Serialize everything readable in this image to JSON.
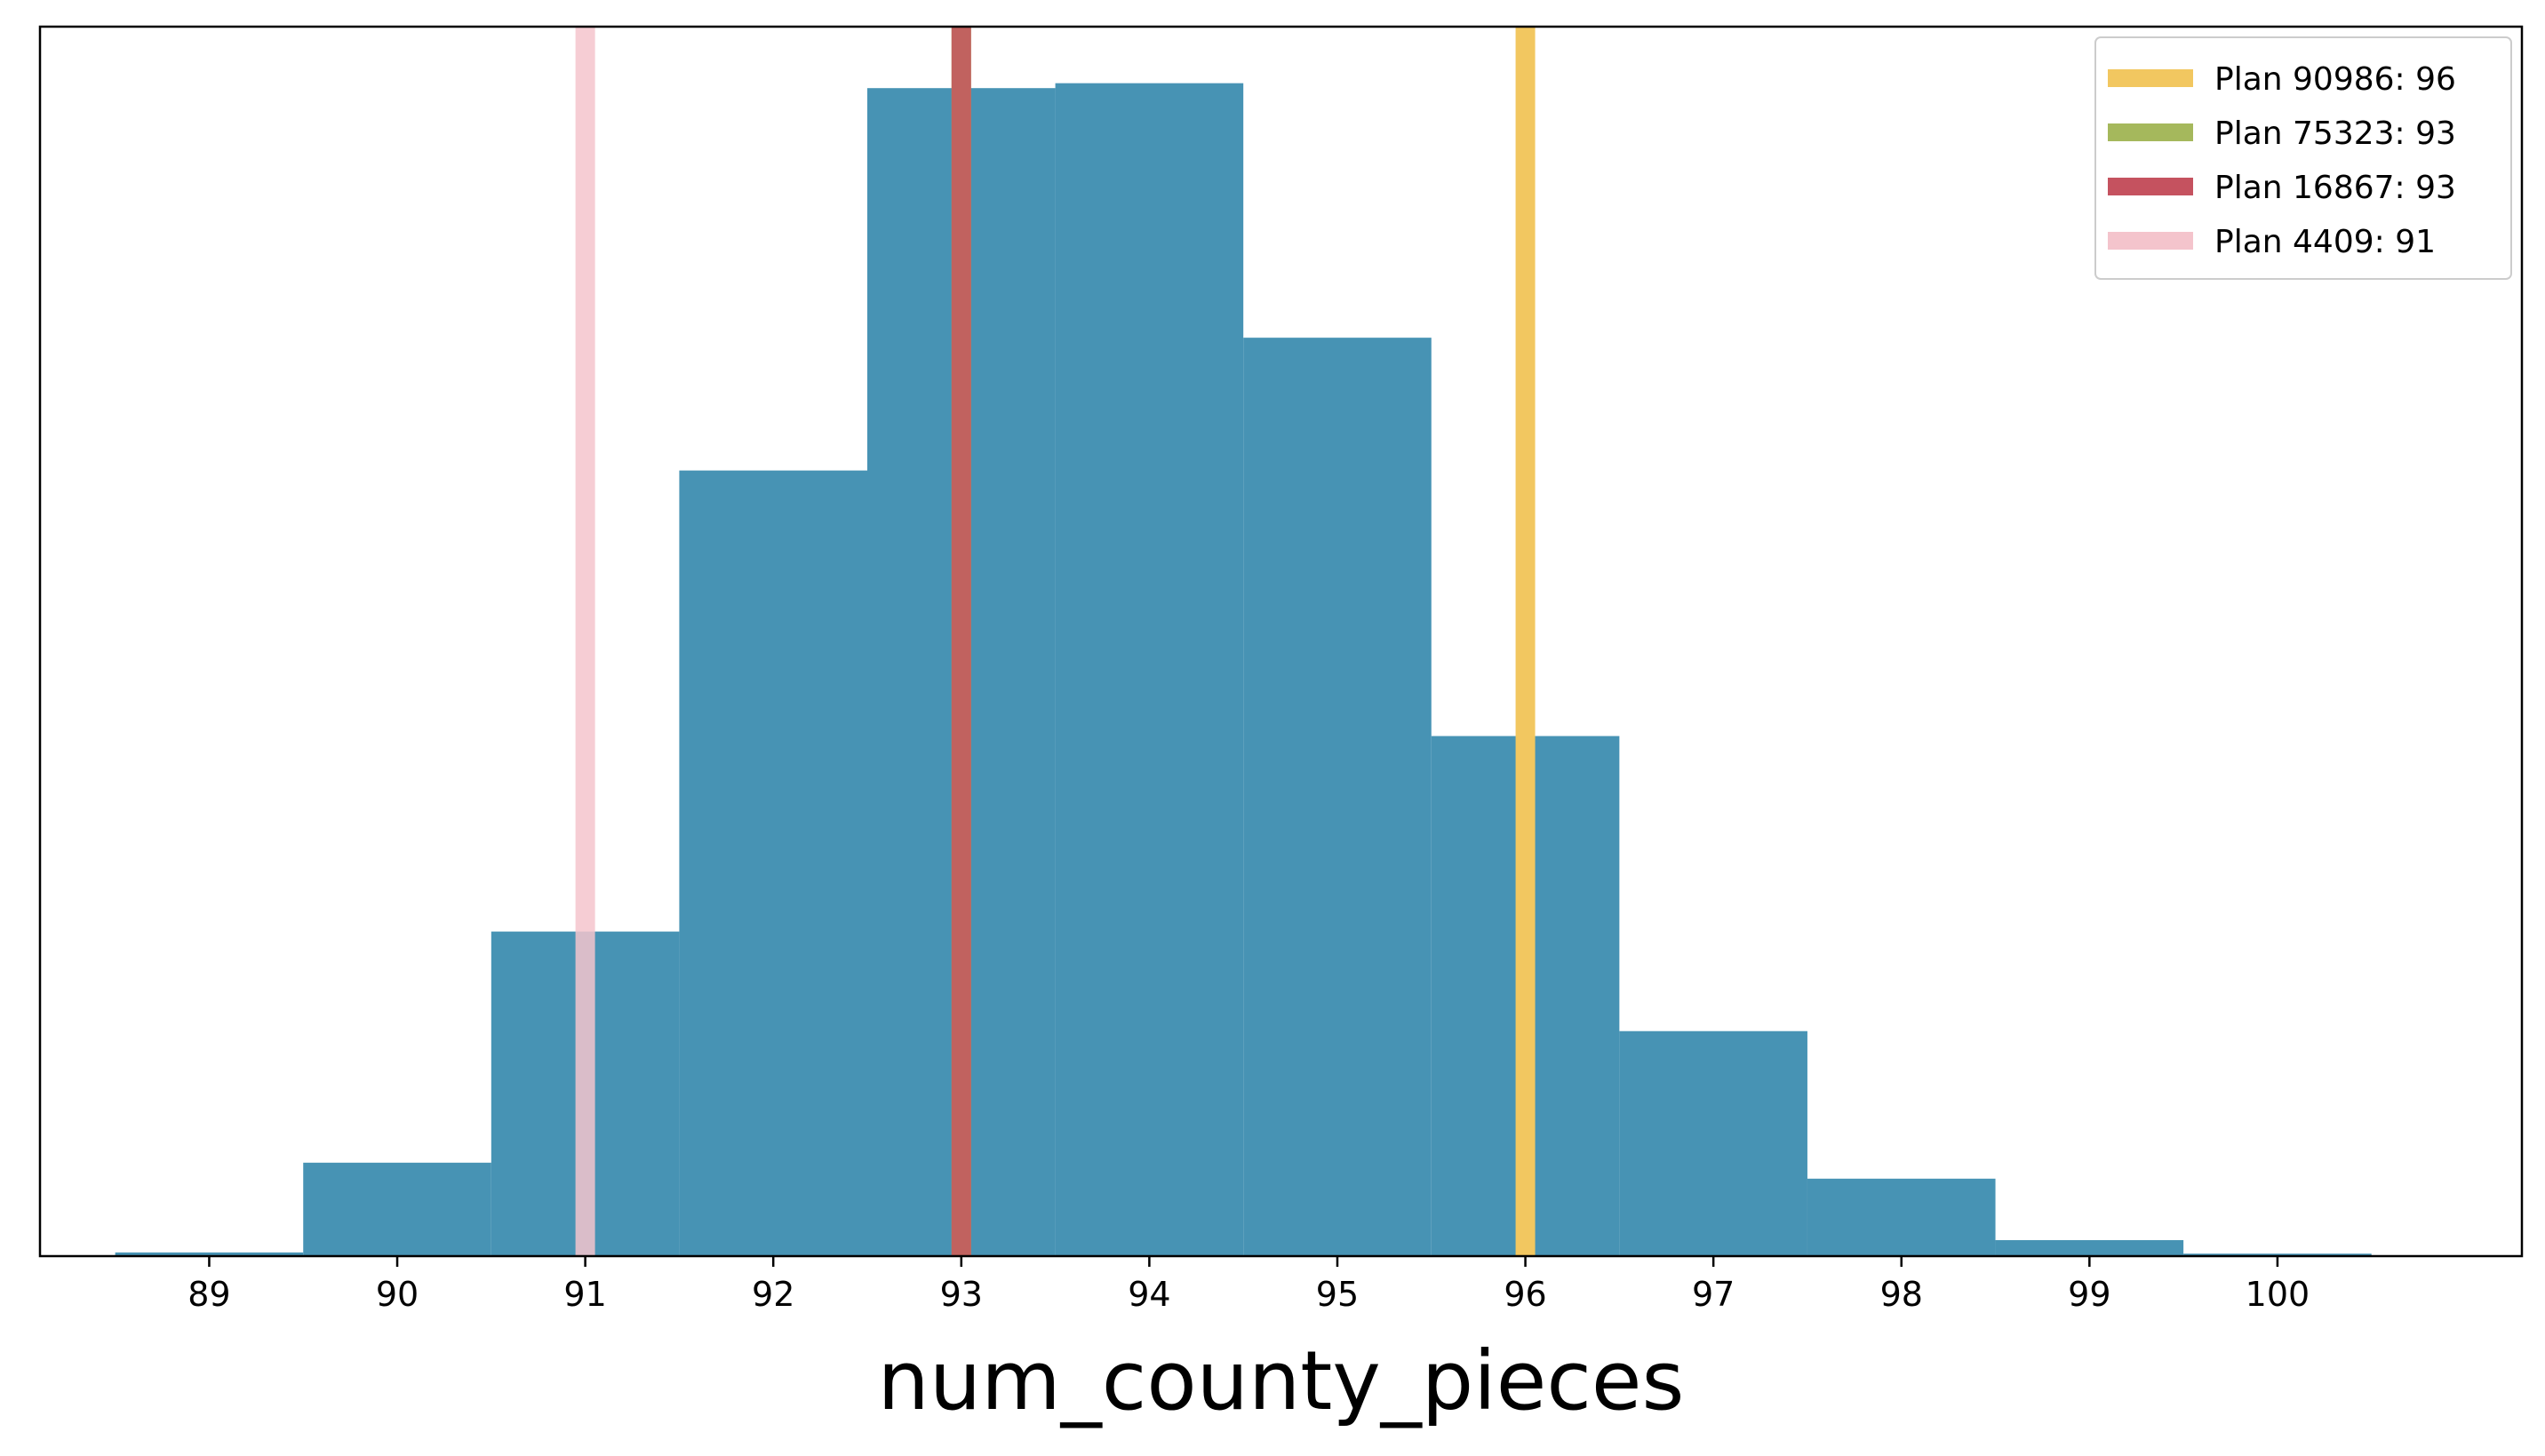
{
  "chart_data": {
    "type": "bar",
    "xlabel": "num_county_pieces",
    "ylabel": "",
    "title": "",
    "xlim": [
      88.1,
      101.3
    ],
    "ylim": [
      0,
      100
    ],
    "x_ticks": [
      89,
      90,
      91,
      92,
      93,
      94,
      95,
      96,
      97,
      98,
      99,
      100
    ],
    "y_ticks_visible": false,
    "grid": false,
    "bar_color": "#4793b4",
    "bins": [
      {
        "left": 88.5,
        "right": 89.5,
        "value": 0.3
      },
      {
        "left": 89.5,
        "right": 90.5,
        "value": 7.6
      },
      {
        "left": 90.5,
        "right": 91.5,
        "value": 26.4
      },
      {
        "left": 91.5,
        "right": 92.5,
        "value": 63.9
      },
      {
        "left": 92.5,
        "right": 93.5,
        "value": 95.0
      },
      {
        "left": 93.5,
        "right": 94.5,
        "value": 95.4
      },
      {
        "left": 94.5,
        "right": 95.5,
        "value": 74.7
      },
      {
        "left": 95.5,
        "right": 96.5,
        "value": 42.3
      },
      {
        "left": 96.5,
        "right": 97.5,
        "value": 18.3
      },
      {
        "left": 97.5,
        "right": 98.5,
        "value": 6.3
      },
      {
        "left": 98.5,
        "right": 99.5,
        "value": 1.3
      },
      {
        "left": 99.5,
        "right": 100.5,
        "value": 0.2
      }
    ],
    "reference_lines": [
      {
        "name": "Plan 90986: 96",
        "x": 96,
        "color": "#f2c760",
        "opacity": 1.0
      },
      {
        "name": "Plan 75323: 93",
        "x": 93,
        "color": "#a5b85c",
        "opacity": 1.0
      },
      {
        "name": "Plan 16867: 93",
        "x": 93,
        "color": "#c5525f",
        "opacity": 0.85
      },
      {
        "name": "Plan 4409: 91",
        "x": 91,
        "color": "#f4c4cc",
        "opacity": 0.85
      }
    ],
    "legend_position": "top-right"
  }
}
